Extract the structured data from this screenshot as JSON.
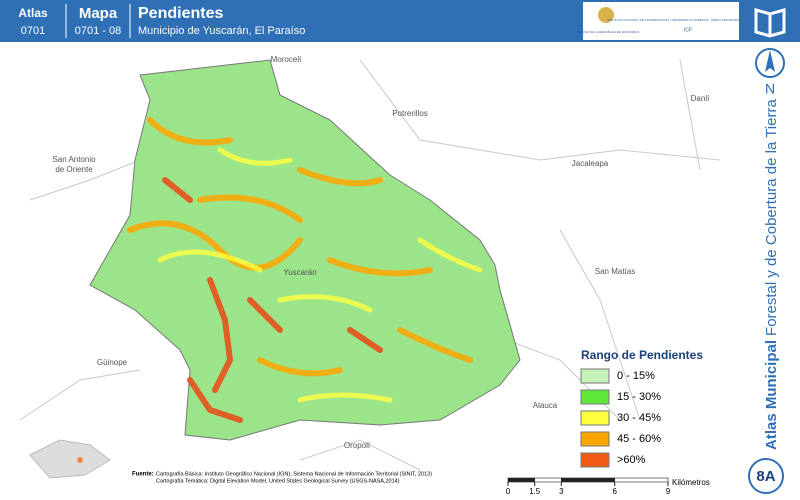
{
  "header": {
    "atlas_label": "Atlas",
    "atlas_code": "0701",
    "mapa_label": "Mapa",
    "mapa_code": "0701 - 08",
    "title": "Pendientes",
    "subtitle": "Municipio de Yuscarán, El Paraíso",
    "logo_left": "GOBIERNO DE LA REPÚBLICA DE HONDURAS",
    "logo_right": "INSTITUTO NACIONAL DE CONSERVACIÓN Y DESARROLLO FORESTAL, ÁREAS PROTEGIDAS Y VIDA SILVESTRE",
    "logo_code": "ICF"
  },
  "places": [
    {
      "label": "Morocelí"
    },
    {
      "label": "Potrerillos"
    },
    {
      "label": "Danlí"
    },
    {
      "label": "Jacaleapa"
    },
    {
      "label": "San Antonio de Oriente"
    },
    {
      "label": "Yuscarán"
    },
    {
      "label": "San Matías"
    },
    {
      "label": "Güinope"
    },
    {
      "label": "Alauca"
    },
    {
      "label": "Oropolí"
    }
  ],
  "north": "N",
  "side_title": {
    "bold": "Atlas Municipal",
    "rest": "Forestal y de Cobertura de la Tierra"
  },
  "badge": "8A",
  "legend": {
    "title": "Rango de Pendientes",
    "items": [
      {
        "label": "0 - 15%",
        "color": "#c6f2b8"
      },
      {
        "label": "15 - 30%",
        "color": "#5fe83a"
      },
      {
        "label": "30 - 45%",
        "color": "#ffff3c"
      },
      {
        "label": "45 - 60%",
        "color": "#ffa500"
      },
      {
        "label": ">60%",
        "color": "#f05a14"
      }
    ]
  },
  "source": {
    "label": "Fuente:",
    "line1": "Cartografía Básica: Instituto Geográfico Nacional (IGN), Sistema Nacional de Información Territorial (SINIT, 2013)",
    "line2": "Cartografía Temática: Digital Elevation Model, United States Geological Survey (USGS-NASA,2014)"
  },
  "scale_bar": {
    "ticks": [
      0,
      1.5,
      3,
      6,
      9
    ],
    "unit": "Kilómetros"
  }
}
